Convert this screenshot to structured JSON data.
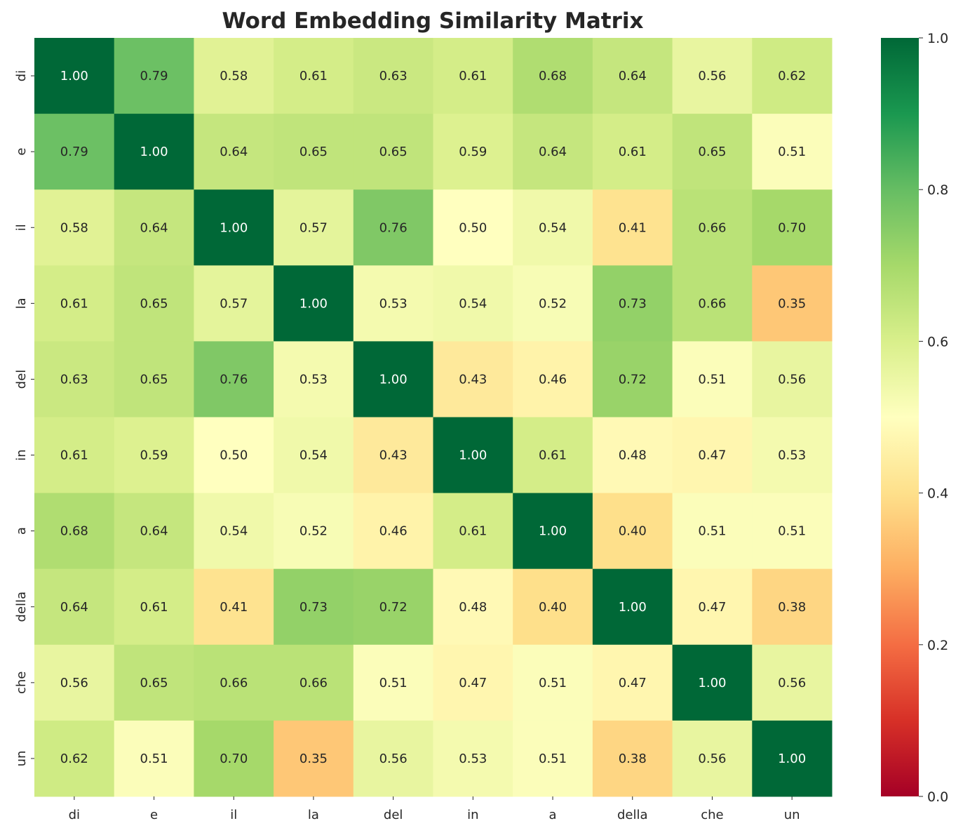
{
  "chart_data": {
    "type": "heatmap",
    "title": "Word Embedding Similarity Matrix",
    "labels": [
      "di",
      "e",
      "il",
      "la",
      "del",
      "in",
      "a",
      "della",
      "che",
      "un"
    ],
    "values": [
      [
        1.0,
        0.79,
        0.58,
        0.61,
        0.63,
        0.61,
        0.68,
        0.64,
        0.56,
        0.62
      ],
      [
        0.79,
        1.0,
        0.64,
        0.65,
        0.65,
        0.59,
        0.64,
        0.61,
        0.65,
        0.51
      ],
      [
        0.58,
        0.64,
        1.0,
        0.57,
        0.76,
        0.5,
        0.54,
        0.41,
        0.66,
        0.7
      ],
      [
        0.61,
        0.65,
        0.57,
        1.0,
        0.53,
        0.54,
        0.52,
        0.73,
        0.66,
        0.35
      ],
      [
        0.63,
        0.65,
        0.76,
        0.53,
        1.0,
        0.43,
        0.46,
        0.72,
        0.51,
        0.56
      ],
      [
        0.61,
        0.59,
        0.5,
        0.54,
        0.43,
        1.0,
        0.61,
        0.48,
        0.47,
        0.53
      ],
      [
        0.68,
        0.64,
        0.54,
        0.52,
        0.46,
        0.61,
        1.0,
        0.4,
        0.51,
        0.51
      ],
      [
        0.64,
        0.61,
        0.41,
        0.73,
        0.72,
        0.48,
        0.4,
        1.0,
        0.47,
        0.38
      ],
      [
        0.56,
        0.65,
        0.66,
        0.66,
        0.51,
        0.47,
        0.51,
        0.47,
        1.0,
        0.56
      ],
      [
        0.62,
        0.51,
        0.7,
        0.35,
        0.56,
        0.53,
        0.51,
        0.38,
        0.56,
        1.0
      ]
    ],
    "colormap": "RdYlGn",
    "vmin": 0.0,
    "vmax": 1.0,
    "colorbar_ticks": [
      "0.0",
      "0.2",
      "0.4",
      "0.6",
      "0.8",
      "1.0"
    ],
    "annotation_format": "0.00",
    "grid": false
  }
}
